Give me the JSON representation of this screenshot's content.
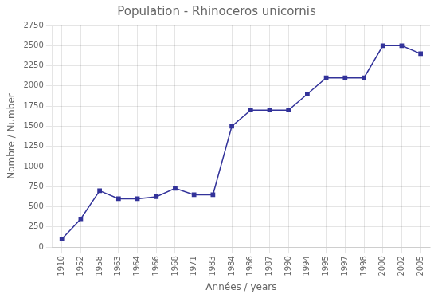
{
  "chart_data": {
    "type": "line",
    "title": "Population - Rhinoceros unicornis",
    "x_label": "Années / years",
    "y_label": "Nombre / Number",
    "categories": [
      "1910",
      "1952",
      "1958",
      "1963",
      "1964",
      "1966",
      "1968",
      "1971",
      "1983",
      "1984",
      "1986",
      "1987",
      "1990",
      "1994",
      "1995",
      "1997",
      "1998",
      "2000",
      "2002",
      "2005"
    ],
    "values": [
      100,
      350,
      700,
      600,
      600,
      625,
      730,
      650,
      650,
      1500,
      1700,
      1700,
      1700,
      1900,
      2100,
      2100,
      2100,
      2500,
      2500,
      2400
    ],
    "color": "#33339a",
    "marker": "square",
    "ylim": [
      0,
      2750
    ],
    "yticks": [
      0,
      250,
      500,
      750,
      1000,
      1250,
      1500,
      1750,
      2000,
      2250,
      2500,
      2750
    ],
    "grid": true
  }
}
